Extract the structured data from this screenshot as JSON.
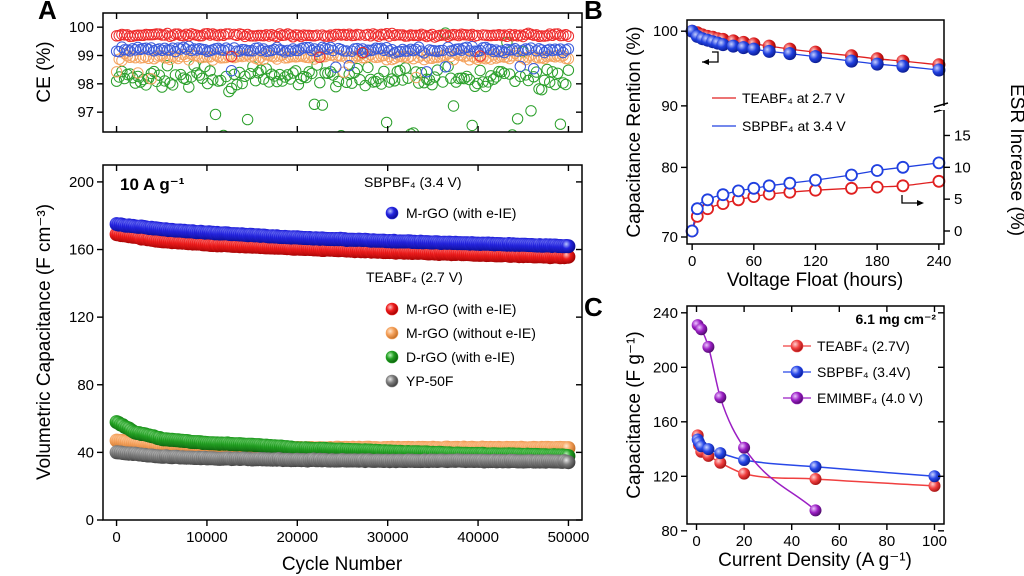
{
  "chart_data": [
    {
      "panel": "A",
      "type": "scatter",
      "ylabel": "CE (%)",
      "xlim": [
        -1500,
        51500
      ],
      "ylim": [
        96.3,
        100.5
      ],
      "yticks": [
        97,
        98,
        99,
        100
      ],
      "series": [
        {
          "color": "#ee2c2c",
          "open": true,
          "pattern": "level",
          "mean": 99.72,
          "spread": 0.08
        },
        {
          "color": "#f4a460",
          "open": true,
          "pattern": "level",
          "mean": 98.95,
          "spread": 0.15
        },
        {
          "color": "#3b5bdb",
          "open": true,
          "pattern": "level",
          "mean": 99.2,
          "spread": 0.15
        },
        {
          "color": "#2ca02c",
          "open": true,
          "pattern": "scatter",
          "mean": 98.2,
          "spread": 0.55
        }
      ]
    },
    {
      "panel": "A",
      "type": "scatter",
      "annotation": "10 A g⁻¹",
      "xlabel": "Cycle Number",
      "ylabel": "Volumetric Capacitance (F cm⁻³)",
      "xlim": [
        -1500,
        51500
      ],
      "ylim": [
        0,
        210
      ],
      "xticks": [
        0,
        10000,
        20000,
        30000,
        40000,
        50000
      ],
      "yticks": [
        0,
        40,
        80,
        120,
        160,
        200
      ],
      "legend_groups": [
        "SBPBF₄ (3.4 V)",
        "TEABF₄ (2.7 V)"
      ],
      "series": [
        {
          "name": "M-rGO (with e-IE)",
          "group": 0,
          "color": "#2424e0",
          "x": [
            0,
            5000,
            10000,
            20000,
            30000,
            40000,
            50000
          ],
          "y": [
            175,
            172,
            170,
            167,
            165,
            163.5,
            162
          ]
        },
        {
          "name": "M-rGO (with e-IE)",
          "group": 1,
          "color": "#ee1c1c",
          "x": [
            0,
            5000,
            10000,
            20000,
            30000,
            40000,
            50000
          ],
          "y": [
            169,
            165,
            163,
            160.5,
            158.5,
            157,
            155.5
          ]
        },
        {
          "name": "M-rGO (without e-IE)",
          "group": 1,
          "color": "#f5a25d",
          "x": [
            0,
            5000,
            10000,
            20000,
            30000,
            40000,
            50000
          ],
          "y": [
            47,
            43.5,
            43,
            42.5,
            42.5,
            42.5,
            42.5
          ]
        },
        {
          "name": "D-rGO (with e-IE)",
          "group": 1,
          "color": "#22a022",
          "x": [
            0,
            2000,
            5000,
            10000,
            15000,
            20000,
            30000,
            40000,
            50000
          ],
          "y": [
            58,
            52,
            48,
            45.5,
            44.5,
            42.5,
            40.5,
            39,
            38
          ]
        },
        {
          "name": "YP-50F",
          "group": 1,
          "color": "#7f7f7f",
          "x": [
            0,
            5000,
            10000,
            20000,
            30000,
            40000,
            50000
          ],
          "y": [
            40,
            37.5,
            36.5,
            35.5,
            35,
            35,
            34.5
          ]
        }
      ]
    },
    {
      "panel": "B",
      "type": "line",
      "xlabel": "Voltage Float (hours)",
      "ylabel": "Capacitance Rention (%)",
      "y2label": "ESR Increase (%)",
      "xlim": [
        -5,
        245
      ],
      "xticks": [
        0,
        60,
        120,
        180,
        240
      ],
      "ylim_top": [
        86.5,
        101.5
      ],
      "yticks_top": [
        90,
        100
      ],
      "ylim_bottom": [
        70,
        82.5
      ],
      "yticks_bottom": [
        70,
        80
      ],
      "y2lim": [
        0,
        19
      ],
      "y2ticks": [
        0,
        5,
        10,
        15
      ],
      "legend": [
        "TEABF₄ at 2.7 V",
        "SBPBF₄ at 3.4 V"
      ],
      "retention": [
        {
          "name": "TEABF₄ at 2.7 V",
          "color": "#e02020",
          "x": [
            0,
            5,
            10,
            15,
            20,
            25,
            30,
            40,
            50,
            60,
            75,
            95,
            120,
            155,
            180,
            205,
            240
          ],
          "y": [
            100,
            99.8,
            99.5,
            99.3,
            99.2,
            99,
            98.9,
            98.7,
            98.5,
            98.3,
            98,
            97.6,
            97.2,
            96.7,
            96.3,
            96,
            95.5
          ]
        },
        {
          "name": "SBPBF₄ at 3.4 V",
          "color": "#2040e0",
          "x": [
            0,
            5,
            10,
            15,
            20,
            25,
            30,
            40,
            50,
            60,
            75,
            95,
            120,
            155,
            180,
            205,
            240
          ],
          "y": [
            100,
            99.3,
            99,
            98.8,
            98.6,
            98.4,
            98.2,
            98,
            97.8,
            97.6,
            97.3,
            97,
            96.6,
            96,
            95.6,
            95.3,
            94.8
          ]
        }
      ],
      "esr": [
        {
          "name": "TEABF₄ at 2.7 V",
          "color": "#e02020",
          "x": [
            0,
            5,
            15,
            30,
            45,
            60,
            75,
            95,
            120,
            155,
            180,
            205,
            240
          ],
          "y": [
            0,
            2.3,
            3.5,
            4.3,
            4.9,
            5.4,
            5.8,
            6.1,
            6.4,
            6.7,
            6.9,
            7.1,
            7.8
          ]
        },
        {
          "name": "SBPBF₄ at 3.4 V",
          "color": "#2040e0",
          "x": [
            0,
            5,
            15,
            30,
            45,
            60,
            75,
            95,
            120,
            155,
            180,
            205,
            240
          ],
          "y": [
            0,
            3.5,
            4.9,
            5.7,
            6.3,
            6.7,
            7.1,
            7.5,
            8,
            8.8,
            9.5,
            10,
            10.7
          ]
        }
      ]
    },
    {
      "panel": "C",
      "type": "line",
      "annotation": "6.1 mg cm⁻²",
      "xlabel": "Current Density (A g⁻¹)",
      "ylabel": "Capacitance (F g⁻¹)",
      "xlim": [
        -4,
        104
      ],
      "xticks": [
        0,
        20,
        40,
        60,
        80,
        100
      ],
      "ylim": [
        85,
        245
      ],
      "yticks": [
        80,
        120,
        160,
        200,
        240
      ],
      "series": [
        {
          "name": "TEABF₄ (2.7V)",
          "color": "#f04040",
          "x": [
            0.5,
            1,
            2,
            5,
            10,
            20,
            50,
            100
          ],
          "y": [
            150,
            143,
            138,
            135,
            130,
            122,
            118,
            113
          ]
        },
        {
          "name": "SBPBF₄ (3.4V)",
          "color": "#2848e8",
          "x": [
            0.5,
            1,
            2,
            5,
            10,
            20,
            50,
            100
          ],
          "y": [
            147,
            145,
            142,
            140,
            137,
            132,
            127,
            120
          ]
        },
        {
          "name": "EMIMBF₄ (4.0 V)",
          "color": "#9b1fc4",
          "x": [
            0.5,
            2,
            5,
            10,
            20,
            50
          ],
          "y": [
            231,
            228,
            215,
            178,
            141,
            95
          ]
        }
      ]
    }
  ]
}
